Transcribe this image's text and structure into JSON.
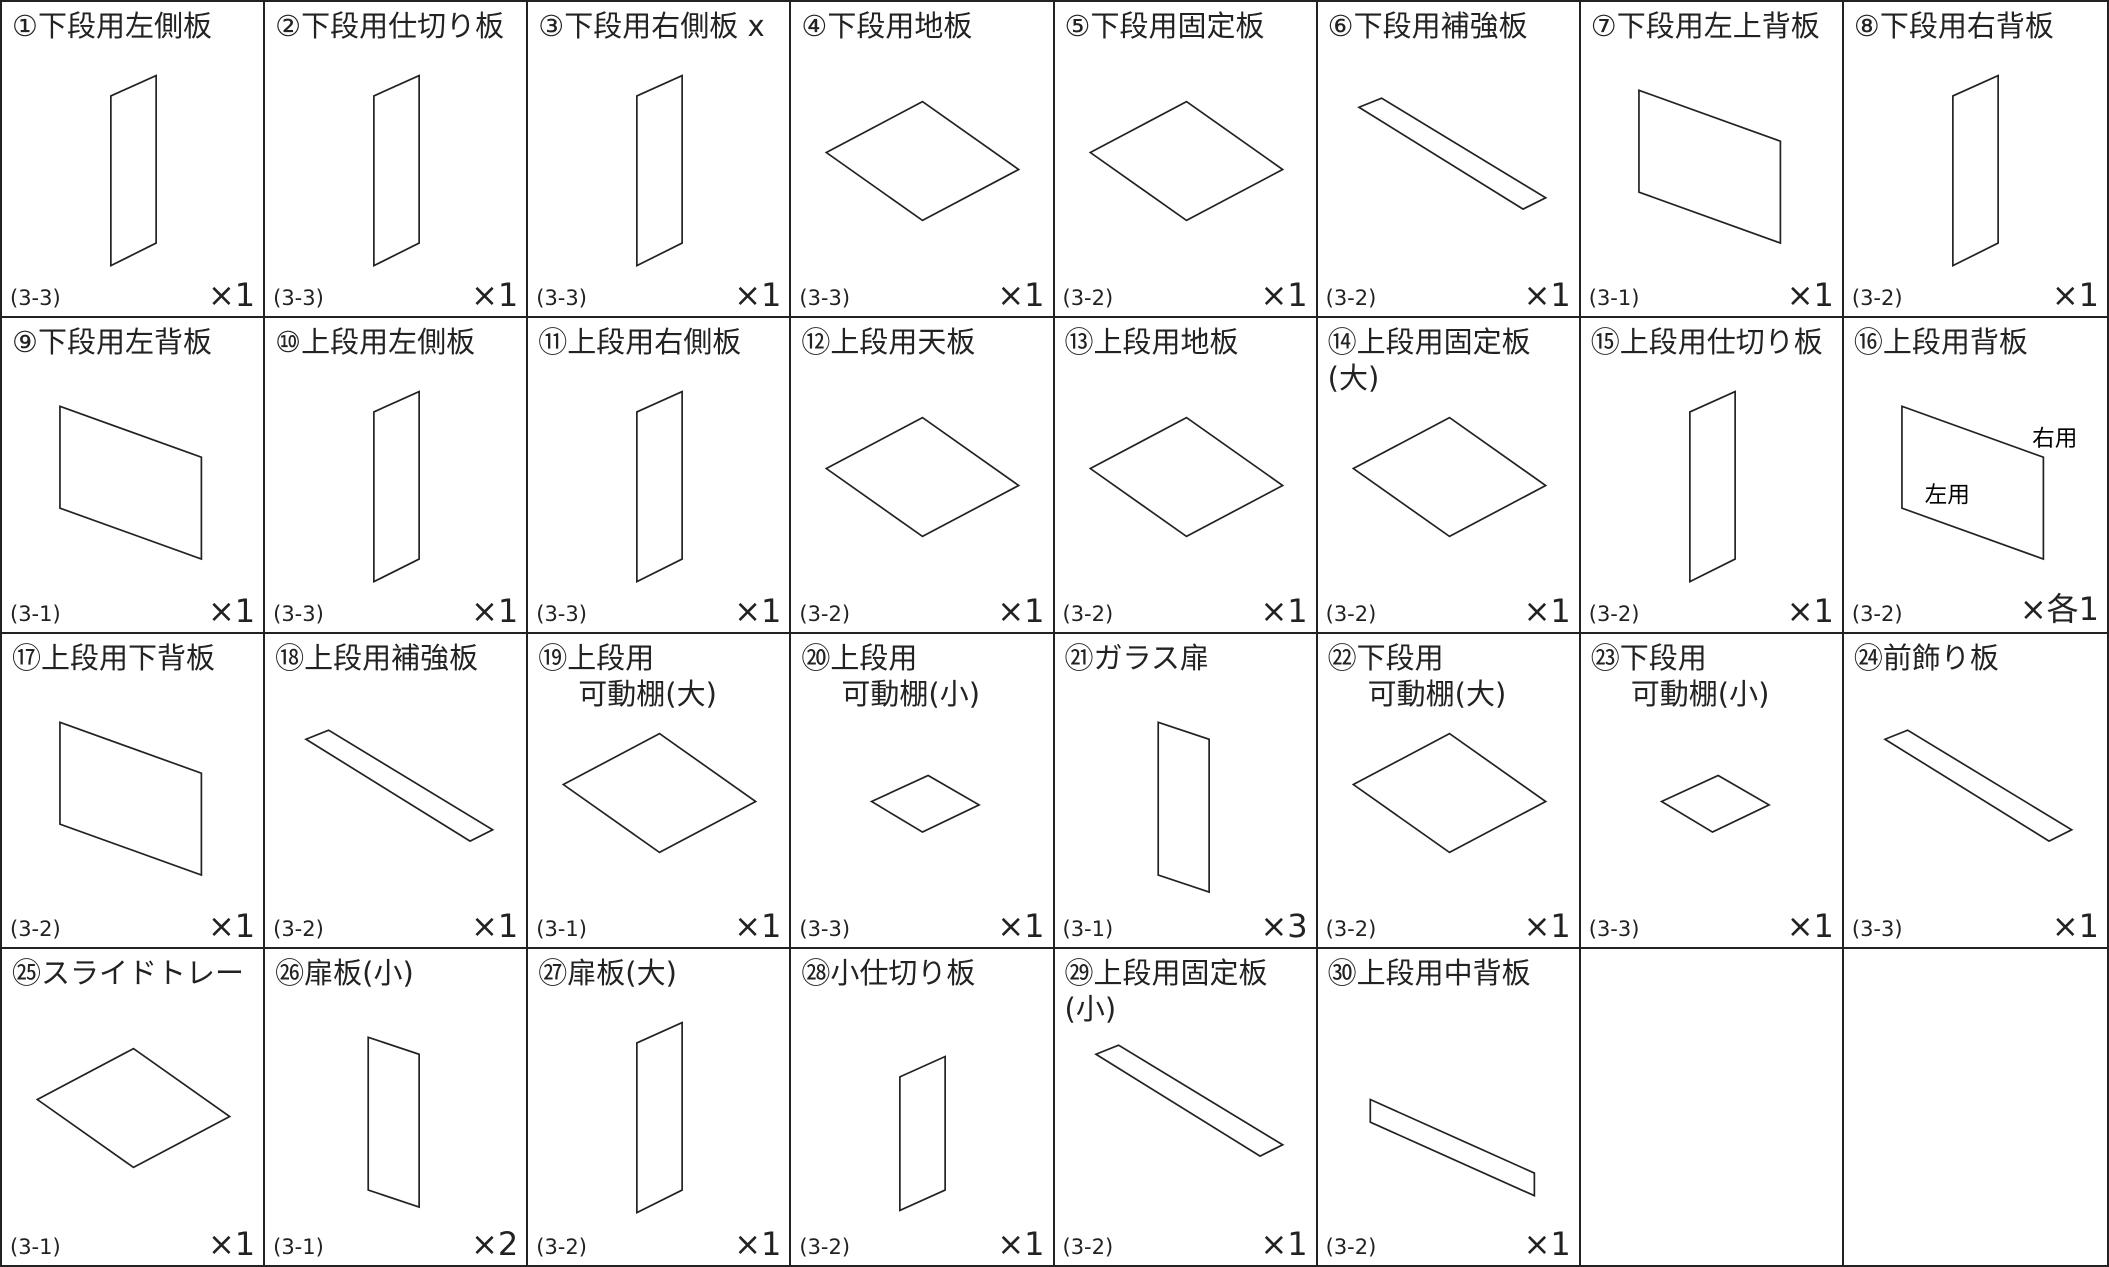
{
  "parts": [
    {
      "label": [
        "①下段用左側板"
      ],
      "code": "(3-3)",
      "qty": "×1"
    },
    {
      "label": [
        "②下段用仕切り板"
      ],
      "code": "(3-3)",
      "qty": "×1"
    },
    {
      "label": [
        "③下段用右側板 x"
      ],
      "code": "(3-3)",
      "qty": "×1"
    },
    {
      "label": [
        "④下段用地板"
      ],
      "code": "(3-3)",
      "qty": "×1"
    },
    {
      "label": [
        "⑤下段用固定板"
      ],
      "code": "(3-2)",
      "qty": "×1"
    },
    {
      "label": [
        "⑥下段用補強板"
      ],
      "code": "(3-2)",
      "qty": "×1"
    },
    {
      "label": [
        "⑦下段用左上背板"
      ],
      "code": "(3-1)",
      "qty": "×1"
    },
    {
      "label": [
        "⑧下段用右背板"
      ],
      "code": "(3-2)",
      "qty": "×1"
    },
    {
      "label": [
        "⑨下段用左背板"
      ],
      "code": "(3-1)",
      "qty": "×1"
    },
    {
      "label": [
        "⑩上段用左側板"
      ],
      "code": "(3-3)",
      "qty": "×1"
    },
    {
      "label": [
        "⑪上段用右側板"
      ],
      "code": "(3-3)",
      "qty": "×1"
    },
    {
      "label": [
        "⑫上段用天板"
      ],
      "code": "(3-2)",
      "qty": "×1"
    },
    {
      "label": [
        "⑬上段用地板"
      ],
      "code": "(3-2)",
      "qty": "×1"
    },
    {
      "label": [
        "⑭上段用固定板(大)"
      ],
      "code": "(3-2)",
      "qty": "×1"
    },
    {
      "label": [
        "⑮上段用仕切り板"
      ],
      "code": "(3-2)",
      "qty": "×1"
    },
    {
      "label": [
        "⑯上段用背板"
      ],
      "code": "(3-2)",
      "qty": "×各1",
      "sublabels": [
        "左用",
        "右用"
      ]
    },
    {
      "label": [
        "⑰上段用下背板"
      ],
      "code": "(3-2)",
      "qty": "×1"
    },
    {
      "label": [
        "⑱上段用補強板"
      ],
      "code": "(3-2)",
      "qty": "×1"
    },
    {
      "label": [
        "⑲上段用",
        "可動棚(大)"
      ],
      "code": "(3-1)",
      "qty": "×1"
    },
    {
      "label": [
        "⑳上段用",
        "可動棚(小)"
      ],
      "code": "(3-3)",
      "qty": "×1"
    },
    {
      "label": [
        "㉑ガラス扉"
      ],
      "code": "(3-1)",
      "qty": "×3"
    },
    {
      "label": [
        "㉒下段用",
        "可動棚(大)"
      ],
      "code": "(3-2)",
      "qty": "×1"
    },
    {
      "label": [
        "㉓下段用",
        "可動棚(小)"
      ],
      "code": "(3-3)",
      "qty": "×1"
    },
    {
      "label": [
        "㉔前飾り板"
      ],
      "code": "(3-3)",
      "qty": "×1"
    },
    {
      "label": [
        "㉕スライドトレー"
      ],
      "code": "(3-1)",
      "qty": "×1"
    },
    {
      "label": [
        "㉖扉板(小)"
      ],
      "code": "(3-1)",
      "qty": "×2"
    },
    {
      "label": [
        "㉗扉板(大)"
      ],
      "code": "(3-2)",
      "qty": "×1"
    },
    {
      "label": [
        "㉘小仕切り板"
      ],
      "code": "(3-2)",
      "qty": "×1"
    },
    {
      "label": [
        "㉙上段用固定板(小)"
      ],
      "code": "(3-2)",
      "qty": "×1"
    },
    {
      "label": [
        "㉚上段用中背板"
      ],
      "code": "(3-2)",
      "qty": "×1"
    }
  ]
}
